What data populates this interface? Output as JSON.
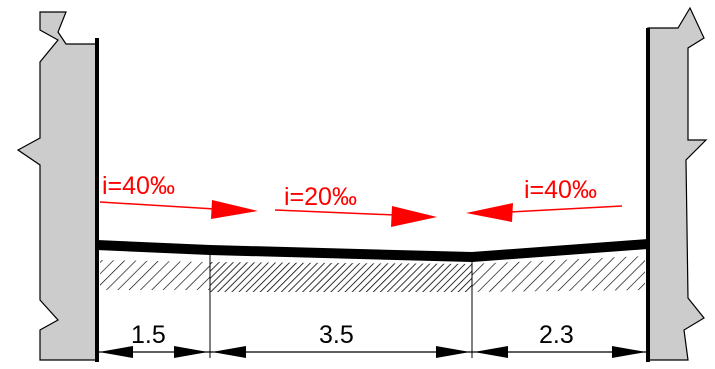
{
  "colors": {
    "wall_fill": "#cccccc",
    "wall_stroke": "#000000",
    "slope_color": "#ff0000",
    "line_color": "#000000"
  },
  "slopes": [
    {
      "label": "i=40‰",
      "direction": "right"
    },
    {
      "label": "i=20‰",
      "direction": "right"
    },
    {
      "label": "i=40‰",
      "direction": "left"
    }
  ],
  "dimensions": [
    "1.5",
    "3.5",
    "2.3"
  ]
}
